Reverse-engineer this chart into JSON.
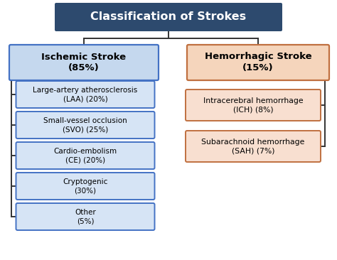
{
  "title": "Classification of Strokes",
  "title_bg": "#2d4a6e",
  "title_fg": "#ffffff",
  "left_parent": "Ischemic Stroke\n(85%)",
  "left_parent_bg": "#c5d8ee",
  "left_parent_border": "#4472c4",
  "right_parent": "Hemorrhagic Stroke\n(15%)",
  "right_parent_bg": "#f5d5bc",
  "right_parent_border": "#c07040",
  "left_children": [
    "Large-artery atherosclerosis\n(LAA) (20%)",
    "Small-vessel occlusion\n(SVO) (25%)",
    "Cardio-embolism\n(CE) (20%)",
    "Cryptogenic\n(30%)",
    "Other\n(5%)"
  ],
  "right_children": [
    "Intracerebral hemorrhage\n(ICH) (8%)",
    "Subarachnoid hemorrhage\n(SAH) (7%)"
  ],
  "left_child_bg": "#d6e4f5",
  "left_child_border": "#4472c4",
  "right_child_bg": "#f8dfd0",
  "right_child_border": "#c07040",
  "line_color": "#333333",
  "bg_color": "#ffffff",
  "figw": 4.74,
  "figh": 3.66,
  "dpi": 100
}
